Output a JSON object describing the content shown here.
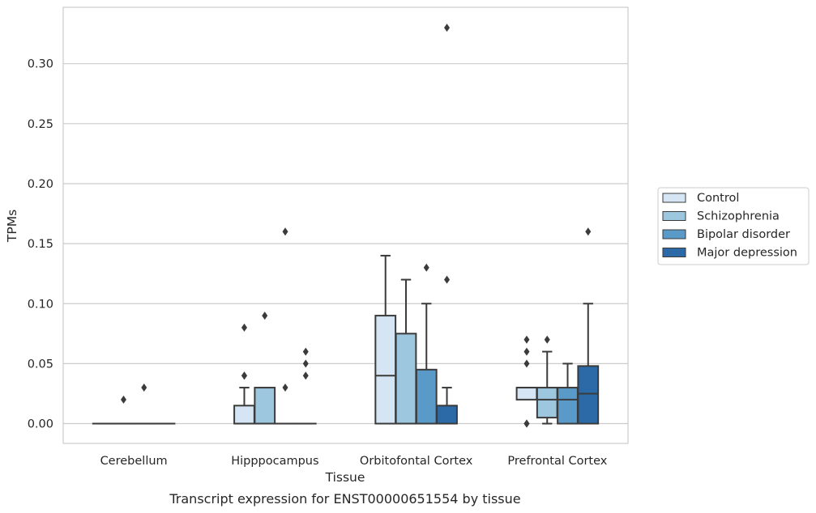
{
  "chart_data": {
    "type": "box",
    "title": "",
    "xlabel": "Tissue",
    "ylabel": "TPMs",
    "caption": "Transcript expression for ENST00000651554 by tissue",
    "categories": [
      "Cerebellum",
      "Hipppocampus",
      "Orbitofontal Cortex",
      "Prefrontal Cortex"
    ],
    "ylim": [
      -0.0165,
      0.347
    ],
    "yticks": [
      0.0,
      0.05,
      0.1,
      0.15,
      0.2,
      0.25,
      0.3
    ],
    "ytick_labels": [
      "0.00",
      "0.05",
      "0.10",
      "0.15",
      "0.20",
      "0.25",
      "0.30"
    ],
    "grid": true,
    "legend_position": "right",
    "series": [
      {
        "name": "Control",
        "color": "#d5e5f3",
        "boxes": [
          {
            "q1": 0.0,
            "median": 0.0,
            "q3": 0.0,
            "whislo": 0.0,
            "whishi": 0.0,
            "fliers": []
          },
          {
            "q1": 0.0,
            "median": 0.0,
            "q3": 0.015,
            "whislo": 0.0,
            "whishi": 0.03,
            "fliers": [
              0.04,
              0.04,
              0.08
            ]
          },
          {
            "q1": 0.0,
            "median": 0.04,
            "q3": 0.09,
            "whislo": 0.0,
            "whishi": 0.14,
            "fliers": []
          },
          {
            "q1": 0.02,
            "median": 0.03,
            "q3": 0.03,
            "whislo": 0.02,
            "whishi": 0.03,
            "fliers": [
              0.0,
              0.0,
              0.05,
              0.06,
              0.07
            ]
          }
        ]
      },
      {
        "name": "Schizophrenia",
        "color": "#9dc6df",
        "boxes": [
          {
            "q1": 0.0,
            "median": 0.0,
            "q3": 0.0,
            "whislo": 0.0,
            "whishi": 0.0,
            "fliers": [
              0.02
            ]
          },
          {
            "q1": 0.0,
            "median": 0.0,
            "q3": 0.03,
            "whislo": 0.0,
            "whishi": 0.03,
            "fliers": [
              0.09
            ]
          },
          {
            "q1": 0.0,
            "median": 0.0,
            "q3": 0.075,
            "whislo": 0.0,
            "whishi": 0.12,
            "fliers": []
          },
          {
            "q1": 0.005,
            "median": 0.02,
            "q3": 0.03,
            "whislo": 0.0,
            "whishi": 0.06,
            "fliers": [
              0.07
            ]
          }
        ]
      },
      {
        "name": "Bipolar disorder",
        "color": "#5a9ac8",
        "boxes": [
          {
            "q1": 0.0,
            "median": 0.0,
            "q3": 0.0,
            "whislo": 0.0,
            "whishi": 0.0,
            "fliers": [
              0.03
            ]
          },
          {
            "q1": 0.0,
            "median": 0.0,
            "q3": 0.0,
            "whislo": 0.0,
            "whishi": 0.0,
            "fliers": [
              0.03,
              0.16
            ]
          },
          {
            "q1": 0.0,
            "median": 0.0,
            "q3": 0.045,
            "whislo": 0.0,
            "whishi": 0.1,
            "fliers": [
              0.13
            ]
          },
          {
            "q1": 0.0,
            "median": 0.02,
            "q3": 0.03,
            "whislo": 0.0,
            "whishi": 0.05,
            "fliers": []
          }
        ]
      },
      {
        "name": "Major depression",
        "color": "#2b6aa6",
        "boxes": [
          {
            "q1": 0.0,
            "median": 0.0,
            "q3": 0.0,
            "whislo": 0.0,
            "whishi": 0.0,
            "fliers": []
          },
          {
            "q1": 0.0,
            "median": 0.0,
            "q3": 0.0,
            "whislo": 0.0,
            "whishi": 0.0,
            "fliers": [
              0.04,
              0.05,
              0.06
            ]
          },
          {
            "q1": 0.0,
            "median": 0.0,
            "q3": 0.015,
            "whislo": 0.0,
            "whishi": 0.03,
            "fliers": [
              0.12,
              0.33
            ]
          },
          {
            "q1": 0.0,
            "median": 0.025,
            "q3": 0.048,
            "whislo": 0.0,
            "whishi": 0.1,
            "fliers": [
              0.16
            ]
          }
        ]
      }
    ]
  }
}
